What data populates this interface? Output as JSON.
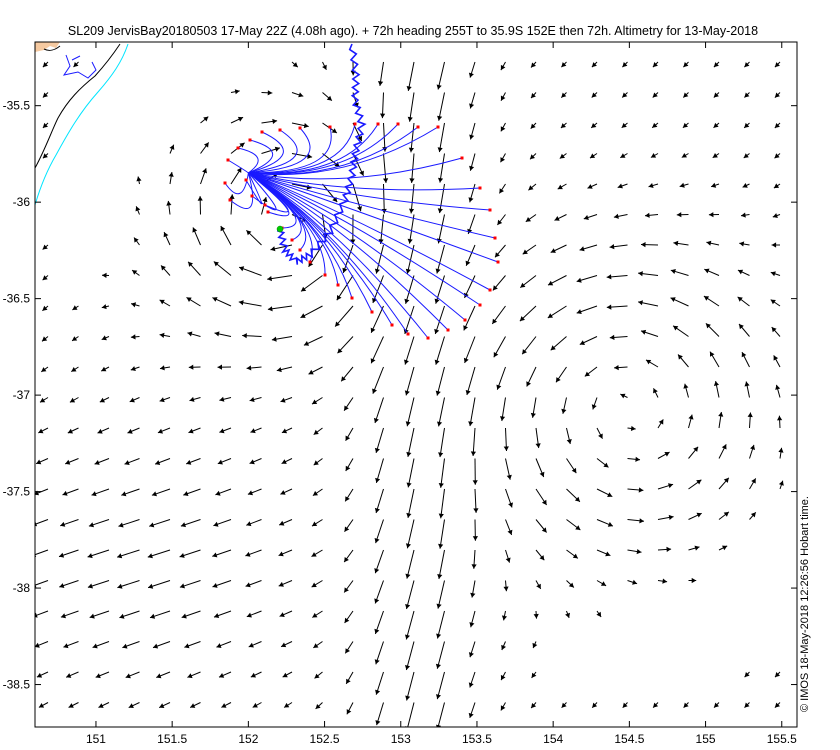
{
  "figure": {
    "title": "SL209 JervisBay20180503 17-May 22Z (4.08h ago). + 72h heading 255T to 35.9S 152E then 72h. Altimetry for 13-May-2018",
    "credit": "© IMOS 18-May-2018 12:26:56 Hobart time."
  },
  "chart_data": {
    "type": "vector-field-map",
    "xlim": [
      150.6,
      155.6
    ],
    "ylim": [
      -38.72,
      -35.17
    ],
    "x_ticks": [
      151,
      151.5,
      152,
      152.5,
      153,
      153.5,
      154,
      154.5,
      155,
      155.5
    ],
    "x_tick_labels": [
      "151",
      "151.5",
      "152",
      "152.5",
      "153",
      "153.5",
      "154",
      "154.5",
      "155",
      "155.5"
    ],
    "y_ticks": [
      -35.5,
      -36,
      -36.5,
      -37,
      -37.5,
      -38,
      -38.5
    ],
    "y_tick_labels": [
      "-35.5",
      "-36",
      "-36.5",
      "-37",
      "-37.5",
      "-38",
      "-38.5"
    ],
    "grid": false,
    "colors": {
      "current_arrows": "#000000",
      "glider_track": "#1a1aff",
      "forecast_paths": "#1a1aff",
      "path_endpoints": "#ff0000",
      "glider_position": "#00cc00",
      "coastline": "#000000",
      "shelf_contour": "#00e5ff",
      "land": "#f5c9a0"
    },
    "glider_position": {
      "lon": 152.21,
      "lat": -36.1
    },
    "target": {
      "lon": 152.0,
      "lat": -35.9
    }
  }
}
